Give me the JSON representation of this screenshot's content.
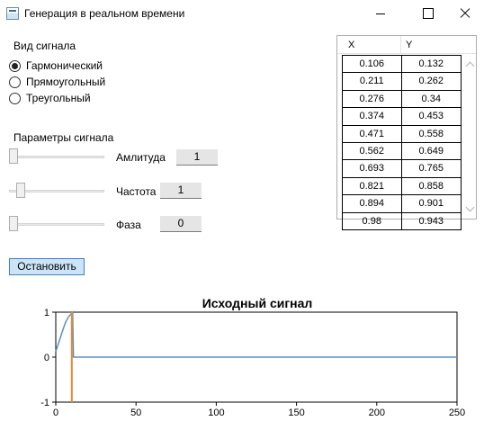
{
  "window": {
    "title": "Генерация в реальном времени"
  },
  "signal_type": {
    "label": "Вид сигнала",
    "options": [
      {
        "label": "Гармонический",
        "checked": true
      },
      {
        "label": "Прямоугольный",
        "checked": false
      },
      {
        "label": "Треугольный",
        "checked": false
      }
    ]
  },
  "params": {
    "label": "Параметры сигнала",
    "amplitude": {
      "label": "Амлитуда",
      "value": "1"
    },
    "frequency": {
      "label": "Частота",
      "value": "1"
    },
    "phase": {
      "label": "Фаза",
      "value": "0"
    }
  },
  "stop_button": {
    "label": "Остановить"
  },
  "grid": {
    "columns": [
      "X",
      "Y"
    ],
    "rows": [
      [
        "0.106",
        "0.132"
      ],
      [
        "0.211",
        "0.262"
      ],
      [
        "0.276",
        "0.34"
      ],
      [
        "0.374",
        "0.453"
      ],
      [
        "0.471",
        "0.558"
      ],
      [
        "0.562",
        "0.649"
      ],
      [
        "0.693",
        "0.765"
      ],
      [
        "0.821",
        "0.858"
      ],
      [
        "0.894",
        "0.901"
      ],
      [
        "0.98",
        "0.943"
      ]
    ]
  },
  "chart_data": {
    "type": "line",
    "title": "Исходный сигнал",
    "xlabel": "",
    "ylabel": "",
    "xlim": [
      0,
      250
    ],
    "ylim": [
      -1,
      1
    ],
    "x_ticks": [
      "0",
      "50",
      "100",
      "150",
      "200",
      "250"
    ],
    "y_ticks": [
      "1",
      "0",
      "-1"
    ],
    "grid": false,
    "series": [
      {
        "color": "#5b8fc7",
        "x": [
          0,
          2,
          4,
          6,
          8,
          9,
          10,
          10.5,
          11,
          250
        ],
        "y": [
          0.13,
          0.34,
          0.56,
          0.77,
          0.9,
          0.94,
          0.98,
          1.0,
          0,
          0
        ]
      },
      {
        "color": "#e8892c",
        "x": [
          10,
          10
        ],
        "y": [
          1,
          -1
        ]
      }
    ]
  }
}
